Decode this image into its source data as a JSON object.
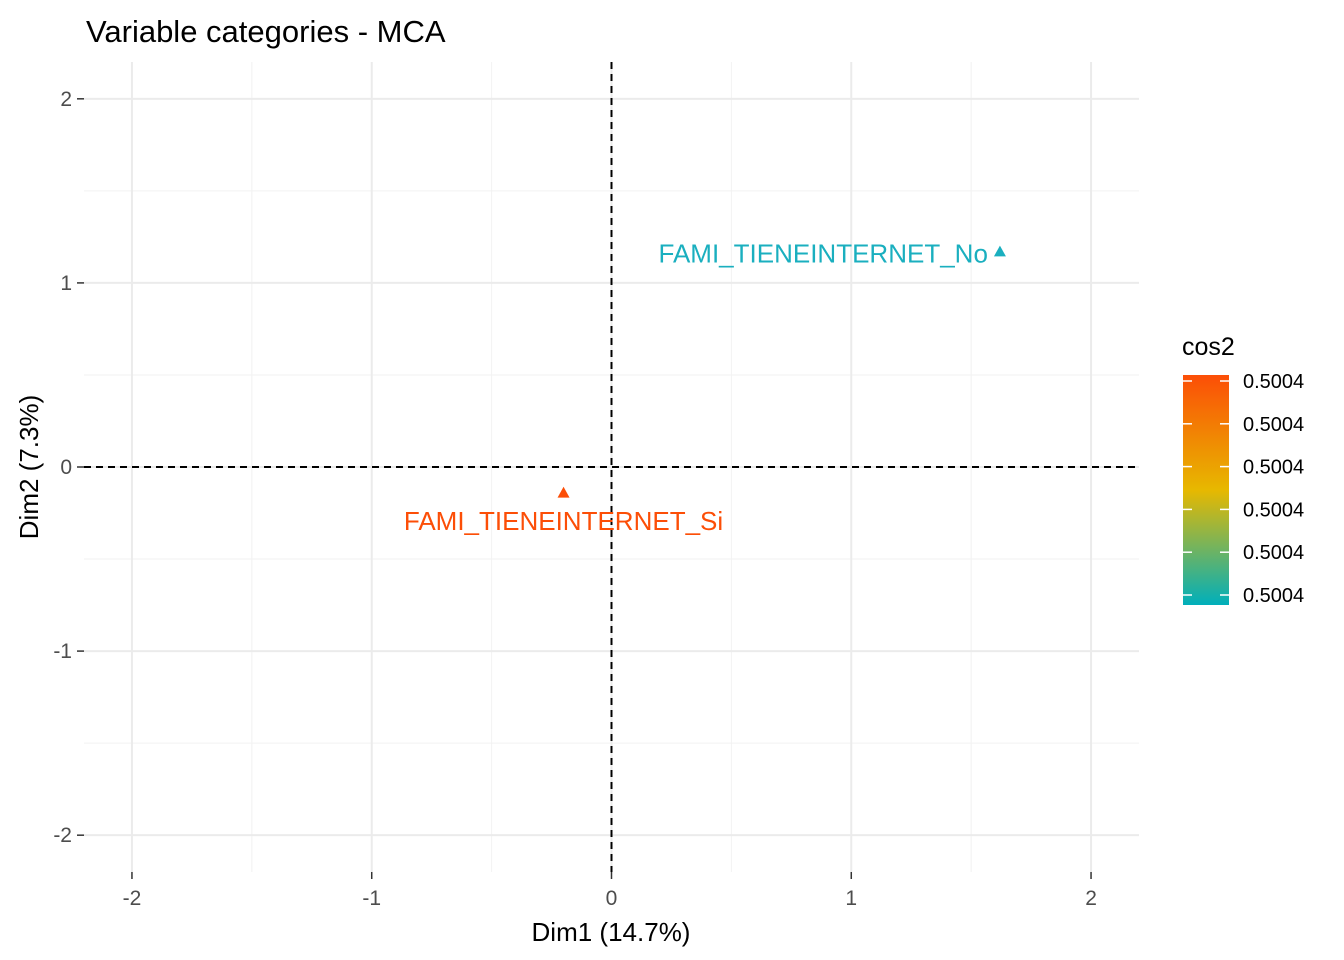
{
  "chart_data": {
    "type": "scatter",
    "title": "Variable categories - MCA",
    "xlabel": "Dim1 (14.7%)",
    "ylabel": "Dim2 (7.3%)",
    "xlim": [
      -2.2,
      2.2
    ],
    "ylim": [
      -2.2,
      2.2
    ],
    "x_ticks": [
      -2,
      -1,
      0,
      1,
      2
    ],
    "y_ticks": [
      -2,
      -1,
      0,
      1,
      2
    ],
    "x_tick_labels": [
      "-2",
      "-1",
      "0",
      "1",
      "2"
    ],
    "y_tick_labels": [
      "-2",
      "-1",
      "0",
      "1",
      "2"
    ],
    "grid": true,
    "reference_lines": {
      "x": 0,
      "y": 0,
      "style": "dashed"
    },
    "marker": "triangle",
    "points": [
      {
        "label": "FAMI_TIENEINTERNET_No",
        "x": 1.62,
        "y": 1.17,
        "color": "#1AAFBF"
      },
      {
        "label": "FAMI_TIENEINTERNET_Si",
        "x": -0.2,
        "y": -0.14,
        "color": "#FC4E07"
      }
    ],
    "legend": {
      "title": "cos2",
      "position": "right",
      "labels": [
        "0.5004",
        "0.5004",
        "0.5004",
        "0.5004",
        "0.5004",
        "0.5004"
      ],
      "gradient": [
        "#00AFBB",
        "#E7B800",
        "#FC4E07"
      ]
    }
  }
}
